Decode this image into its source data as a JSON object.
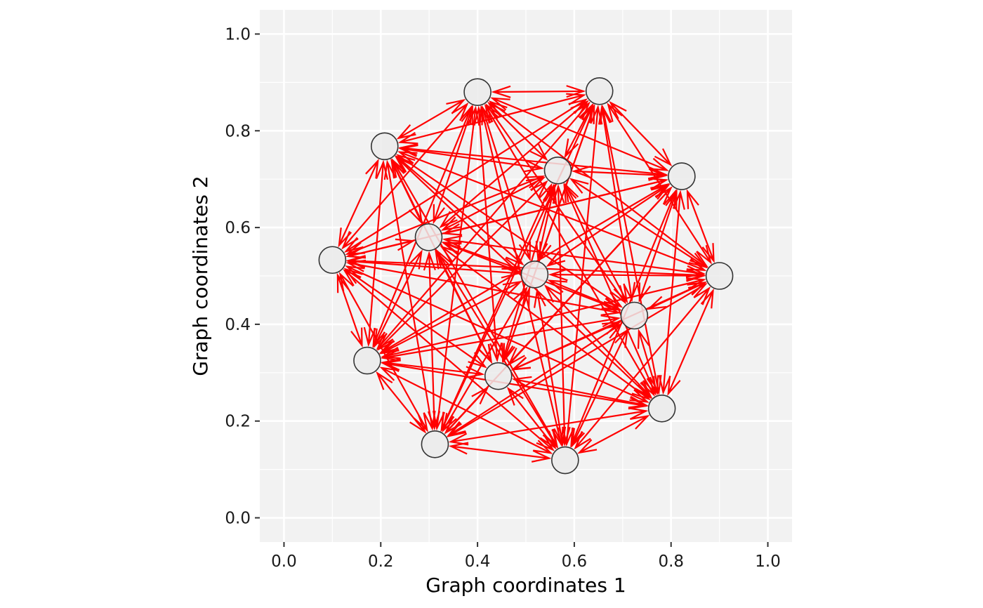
{
  "chart_data": {
    "type": "network",
    "xlabel": "Graph coordinates 1",
    "ylabel": "Graph coordinates 2",
    "xlim": [
      -0.05,
      1.05
    ],
    "ylim": [
      -0.05,
      1.05
    ],
    "x_ticks": [
      0.0,
      0.2,
      0.4,
      0.6,
      0.8,
      1.0
    ],
    "y_ticks": [
      0.0,
      0.2,
      0.4,
      0.6,
      0.8,
      1.0
    ],
    "x_tick_labels": [
      "0.0",
      "0.2",
      "0.4",
      "0.6",
      "0.8",
      "1.0"
    ],
    "y_tick_labels": [
      "0.0",
      "0.2",
      "0.4",
      "0.6",
      "0.8",
      "1.0"
    ],
    "grid": true,
    "edge_color": "#ff0000",
    "node_fill": "#ebebeb",
    "node_stroke": "#333333",
    "panel_background": "#f2f2f2",
    "nodes": [
      {
        "x": 0.4,
        "y": 0.88
      },
      {
        "x": 0.652,
        "y": 0.882
      },
      {
        "x": 0.208,
        "y": 0.768
      },
      {
        "x": 0.566,
        "y": 0.718
      },
      {
        "x": 0.822,
        "y": 0.706
      },
      {
        "x": 0.299,
        "y": 0.58
      },
      {
        "x": 0.1,
        "y": 0.533
      },
      {
        "x": 0.518,
        "y": 0.503
      },
      {
        "x": 0.9,
        "y": 0.5
      },
      {
        "x": 0.724,
        "y": 0.418
      },
      {
        "x": 0.172,
        "y": 0.325
      },
      {
        "x": 0.443,
        "y": 0.293
      },
      {
        "x": 0.781,
        "y": 0.226
      },
      {
        "x": 0.312,
        "y": 0.152
      },
      {
        "x": 0.581,
        "y": 0.119
      }
    ],
    "edges": [
      [
        0,
        1
      ],
      [
        0,
        2
      ],
      [
        0,
        3
      ],
      [
        0,
        4
      ],
      [
        0,
        5
      ],
      [
        0,
        6
      ],
      [
        0,
        7
      ],
      [
        0,
        8
      ],
      [
        0,
        9
      ],
      [
        0,
        10
      ],
      [
        0,
        11
      ],
      [
        0,
        12
      ],
      [
        0,
        13
      ],
      [
        0,
        14
      ],
      [
        1,
        2
      ],
      [
        1,
        3
      ],
      [
        1,
        4
      ],
      [
        1,
        5
      ],
      [
        1,
        6
      ],
      [
        1,
        7
      ],
      [
        1,
        8
      ],
      [
        1,
        9
      ],
      [
        1,
        10
      ],
      [
        1,
        11
      ],
      [
        1,
        12
      ],
      [
        1,
        13
      ],
      [
        1,
        14
      ],
      [
        2,
        3
      ],
      [
        2,
        4
      ],
      [
        2,
        5
      ],
      [
        2,
        6
      ],
      [
        2,
        7
      ],
      [
        2,
        8
      ],
      [
        2,
        9
      ],
      [
        2,
        10
      ],
      [
        2,
        11
      ],
      [
        2,
        12
      ],
      [
        2,
        13
      ],
      [
        2,
        14
      ],
      [
        3,
        4
      ],
      [
        3,
        5
      ],
      [
        3,
        6
      ],
      [
        3,
        7
      ],
      [
        3,
        8
      ],
      [
        3,
        9
      ],
      [
        3,
        10
      ],
      [
        3,
        11
      ],
      [
        3,
        12
      ],
      [
        3,
        13
      ],
      [
        3,
        14
      ],
      [
        4,
        5
      ],
      [
        4,
        6
      ],
      [
        4,
        7
      ],
      [
        4,
        8
      ],
      [
        4,
        9
      ],
      [
        4,
        10
      ],
      [
        4,
        11
      ],
      [
        4,
        12
      ],
      [
        4,
        13
      ],
      [
        4,
        14
      ],
      [
        5,
        6
      ],
      [
        5,
        7
      ],
      [
        5,
        8
      ],
      [
        5,
        9
      ],
      [
        5,
        10
      ],
      [
        5,
        11
      ],
      [
        5,
        12
      ],
      [
        5,
        13
      ],
      [
        5,
        14
      ],
      [
        6,
        7
      ],
      [
        6,
        8
      ],
      [
        6,
        9
      ],
      [
        6,
        10
      ],
      [
        6,
        11
      ],
      [
        6,
        12
      ],
      [
        6,
        13
      ],
      [
        6,
        14
      ],
      [
        7,
        8
      ],
      [
        7,
        9
      ],
      [
        7,
        10
      ],
      [
        7,
        11
      ],
      [
        7,
        12
      ],
      [
        7,
        13
      ],
      [
        7,
        14
      ],
      [
        8,
        9
      ],
      [
        8,
        10
      ],
      [
        8,
        11
      ],
      [
        8,
        12
      ],
      [
        8,
        13
      ],
      [
        8,
        14
      ],
      [
        9,
        10
      ],
      [
        9,
        11
      ],
      [
        9,
        12
      ],
      [
        9,
        13
      ],
      [
        9,
        14
      ],
      [
        10,
        11
      ],
      [
        10,
        12
      ],
      [
        10,
        13
      ],
      [
        10,
        14
      ],
      [
        11,
        12
      ],
      [
        11,
        13
      ],
      [
        11,
        14
      ],
      [
        12,
        13
      ],
      [
        12,
        14
      ],
      [
        13,
        14
      ]
    ]
  }
}
